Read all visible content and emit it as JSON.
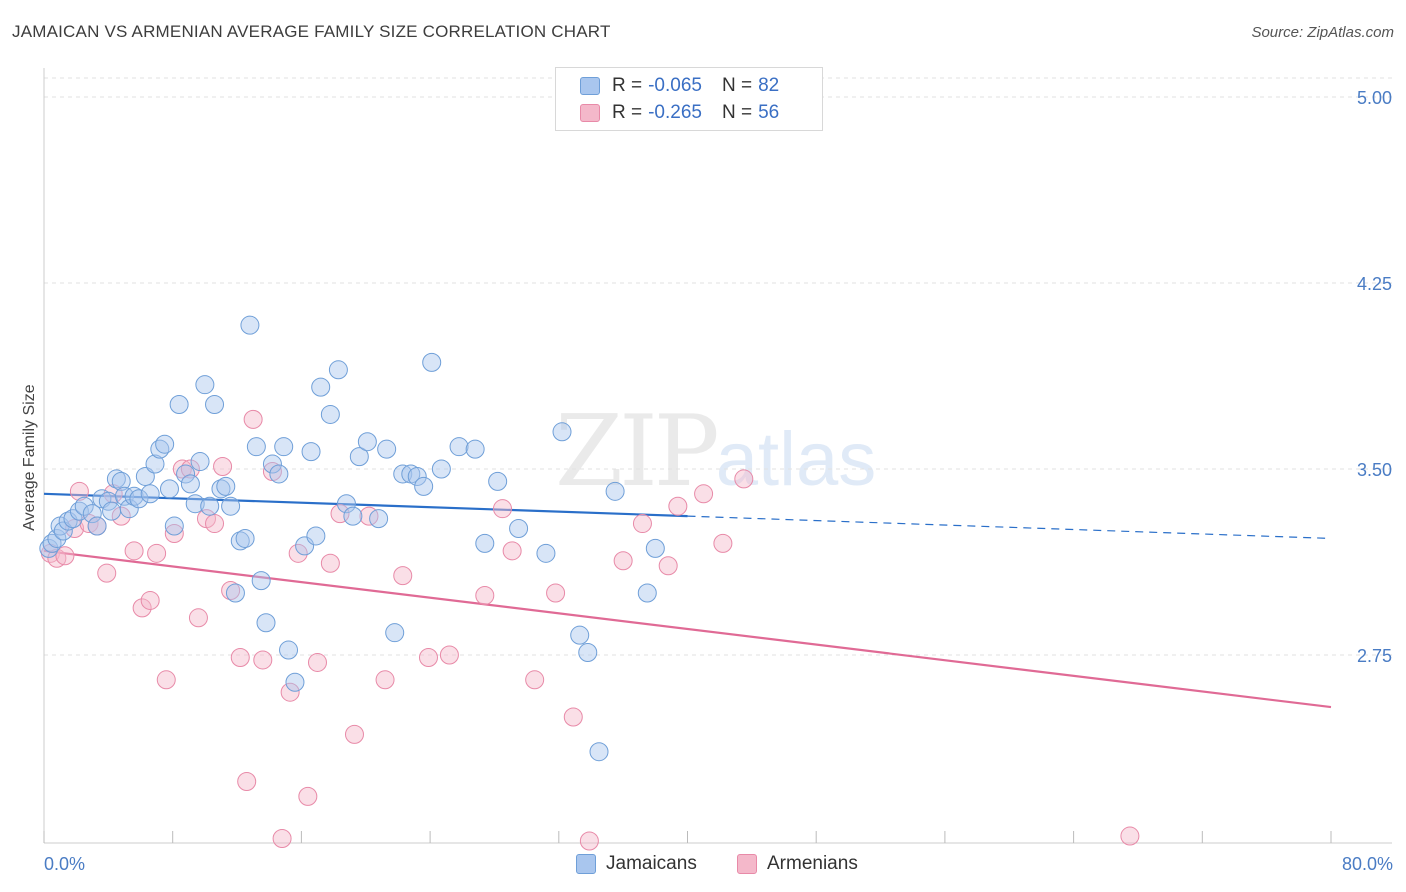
{
  "title": "JAMAICAN VS ARMENIAN AVERAGE FAMILY SIZE CORRELATION CHART",
  "source": "Source: ZipAtlas.com",
  "watermark": {
    "zip": "ZIP",
    "atlas": "atlas"
  },
  "legend": {
    "rows": [
      {
        "r_label": "R =",
        "r_value": "-0.065",
        "n_label": "N =",
        "n_value": "82"
      },
      {
        "r_label": "R =",
        "r_value": "-0.265",
        "n_label": "N =",
        "n_value": "56"
      }
    ]
  },
  "bottom_legend": {
    "jamaicans": "Jamaicans",
    "armenians": "Armenians"
  },
  "colors": {
    "blue_fill": "#a9c6ee",
    "blue_stroke": "#6f9fd8",
    "blue_line": "#2a6fc9",
    "pink_fill": "#f4b8ca",
    "pink_stroke": "#e88aa8",
    "pink_line": "#e06a95",
    "grid": "#e2e2e2",
    "axis_text": "#4a7cc4"
  },
  "chart_data": {
    "type": "scatter",
    "title": "JAMAICAN VS ARMENIAN AVERAGE FAMILY SIZE CORRELATION CHART",
    "xlabel": "",
    "ylabel": "Average Family Size",
    "xlim": [
      0,
      80
    ],
    "ylim": [
      2.0,
      5.1
    ],
    "x_tick_labels": {
      "left": "0.0%",
      "right": "80.0%"
    },
    "y_ticks": [
      {
        "value": 5.0,
        "label": "5.00"
      },
      {
        "value": 4.25,
        "label": "4.25"
      },
      {
        "value": 3.5,
        "label": "3.50"
      },
      {
        "value": 2.75,
        "label": "2.75"
      }
    ],
    "series": [
      {
        "name": "Jamaicans",
        "r": -0.065,
        "n": 82,
        "trend": {
          "x0": 0,
          "y0": 3.4,
          "x1": 40,
          "y1": 3.31,
          "x_dash_end": 80,
          "y_dash_end": 3.22
        },
        "points": [
          [
            0.3,
            3.18
          ],
          [
            0.5,
            3.2
          ],
          [
            0.8,
            3.22
          ],
          [
            1.0,
            3.27
          ],
          [
            1.2,
            3.25
          ],
          [
            1.5,
            3.29
          ],
          [
            1.8,
            3.3
          ],
          [
            2.2,
            3.33
          ],
          [
            2.5,
            3.35
          ],
          [
            3.0,
            3.32
          ],
          [
            3.3,
            3.27
          ],
          [
            3.6,
            3.38
          ],
          [
            4.0,
            3.37
          ],
          [
            4.2,
            3.33
          ],
          [
            4.5,
            3.46
          ],
          [
            4.8,
            3.45
          ],
          [
            5.0,
            3.39
          ],
          [
            5.3,
            3.34
          ],
          [
            5.6,
            3.39
          ],
          [
            5.9,
            3.38
          ],
          [
            6.3,
            3.47
          ],
          [
            6.6,
            3.4
          ],
          [
            6.9,
            3.52
          ],
          [
            7.2,
            3.58
          ],
          [
            7.5,
            3.6
          ],
          [
            7.8,
            3.42
          ],
          [
            8.1,
            3.27
          ],
          [
            8.4,
            3.76
          ],
          [
            8.8,
            3.48
          ],
          [
            9.1,
            3.44
          ],
          [
            9.4,
            3.36
          ],
          [
            9.7,
            3.53
          ],
          [
            10.0,
            3.84
          ],
          [
            10.3,
            3.35
          ],
          [
            10.6,
            3.76
          ],
          [
            11.0,
            3.42
          ],
          [
            11.3,
            3.43
          ],
          [
            11.6,
            3.35
          ],
          [
            11.9,
            3.0
          ],
          [
            12.2,
            3.21
          ],
          [
            12.5,
            3.22
          ],
          [
            12.8,
            4.08
          ],
          [
            13.2,
            3.59
          ],
          [
            13.5,
            3.05
          ],
          [
            13.8,
            2.88
          ],
          [
            14.2,
            3.52
          ],
          [
            14.6,
            3.48
          ],
          [
            14.9,
            3.59
          ],
          [
            15.2,
            2.77
          ],
          [
            15.6,
            2.64
          ],
          [
            16.2,
            3.19
          ],
          [
            16.6,
            3.57
          ],
          [
            16.9,
            3.23
          ],
          [
            17.2,
            3.83
          ],
          [
            17.8,
            3.72
          ],
          [
            18.3,
            3.9
          ],
          [
            18.8,
            3.36
          ],
          [
            19.2,
            3.31
          ],
          [
            19.6,
            3.55
          ],
          [
            20.1,
            3.61
          ],
          [
            20.8,
            3.3
          ],
          [
            21.3,
            3.58
          ],
          [
            21.8,
            2.84
          ],
          [
            22.3,
            3.48
          ],
          [
            22.8,
            3.48
          ],
          [
            23.2,
            3.47
          ],
          [
            23.6,
            3.43
          ],
          [
            24.1,
            3.93
          ],
          [
            24.7,
            3.5
          ],
          [
            25.8,
            3.59
          ],
          [
            26.8,
            3.58
          ],
          [
            27.4,
            3.2
          ],
          [
            28.2,
            3.45
          ],
          [
            29.5,
            3.26
          ],
          [
            31.2,
            3.16
          ],
          [
            32.2,
            3.65
          ],
          [
            33.3,
            2.83
          ],
          [
            33.8,
            2.76
          ],
          [
            34.5,
            2.36
          ],
          [
            35.5,
            3.41
          ],
          [
            37.5,
            3.0
          ],
          [
            38.0,
            3.18
          ]
        ]
      },
      {
        "name": "Armenians",
        "r": -0.265,
        "n": 56,
        "trend": {
          "x0": 0,
          "y0": 3.17,
          "x1": 80,
          "y1": 2.54
        },
        "points": [
          [
            0.4,
            3.16
          ],
          [
            0.8,
            3.14
          ],
          [
            1.3,
            3.15
          ],
          [
            1.9,
            3.26
          ],
          [
            2.2,
            3.41
          ],
          [
            2.8,
            3.28
          ],
          [
            3.3,
            3.27
          ],
          [
            3.9,
            3.08
          ],
          [
            4.3,
            3.4
          ],
          [
            4.8,
            3.31
          ],
          [
            5.6,
            3.17
          ],
          [
            6.1,
            2.94
          ],
          [
            6.6,
            2.97
          ],
          [
            7.0,
            3.16
          ],
          [
            7.6,
            2.65
          ],
          [
            8.1,
            3.24
          ],
          [
            8.6,
            3.5
          ],
          [
            9.1,
            3.5
          ],
          [
            9.6,
            2.9
          ],
          [
            10.1,
            3.3
          ],
          [
            10.6,
            3.28
          ],
          [
            11.1,
            3.51
          ],
          [
            11.6,
            3.01
          ],
          [
            12.2,
            2.74
          ],
          [
            12.6,
            2.24
          ],
          [
            13.0,
            3.7
          ],
          [
            13.6,
            2.73
          ],
          [
            14.2,
            3.49
          ],
          [
            14.8,
            2.01
          ],
          [
            15.3,
            2.6
          ],
          [
            15.8,
            3.16
          ],
          [
            16.4,
            2.18
          ],
          [
            17.0,
            2.72
          ],
          [
            17.8,
            3.12
          ],
          [
            18.4,
            3.32
          ],
          [
            19.3,
            2.43
          ],
          [
            20.2,
            3.31
          ],
          [
            21.2,
            2.65
          ],
          [
            22.3,
            3.07
          ],
          [
            23.9,
            2.74
          ],
          [
            25.2,
            2.75
          ],
          [
            27.4,
            2.99
          ],
          [
            28.5,
            3.34
          ],
          [
            29.1,
            3.17
          ],
          [
            30.5,
            2.65
          ],
          [
            31.8,
            3.0
          ],
          [
            32.9,
            2.5
          ],
          [
            33.9,
            2.0
          ],
          [
            36.0,
            3.13
          ],
          [
            37.2,
            3.28
          ],
          [
            38.8,
            3.11
          ],
          [
            39.4,
            3.35
          ],
          [
            41.0,
            3.4
          ],
          [
            42.2,
            3.2
          ],
          [
            43.5,
            3.46
          ],
          [
            67.5,
            2.02
          ]
        ]
      }
    ]
  }
}
